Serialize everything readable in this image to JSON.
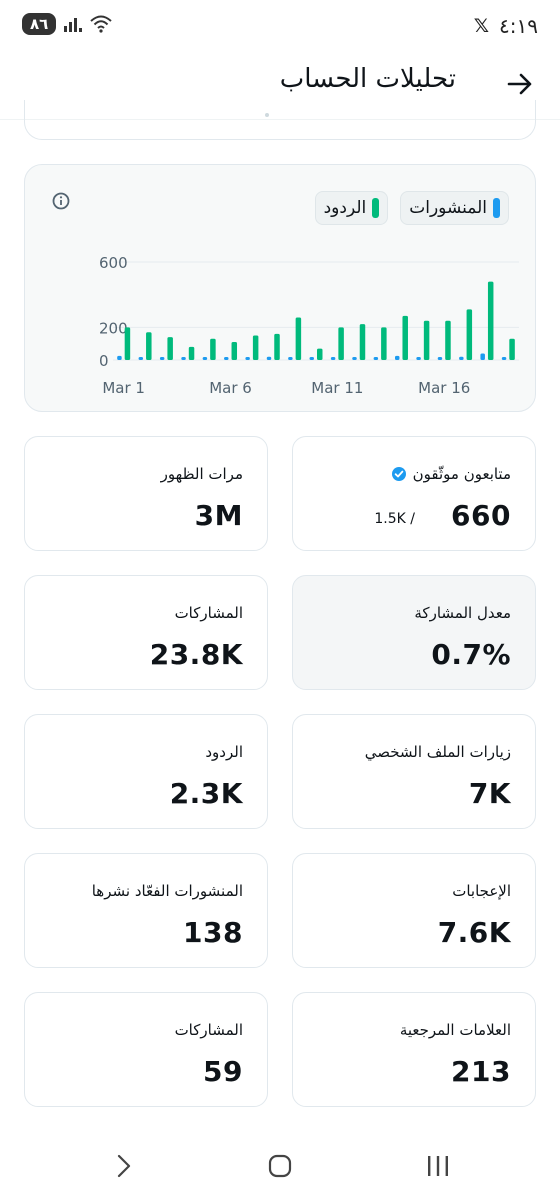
{
  "status_bar": {
    "time": "٤:١٩",
    "battery": "٨٦"
  },
  "header": {
    "title": "تحليلات الحساب"
  },
  "chart_data": {
    "type": "bar",
    "legend": [
      {
        "label": "المنشورات",
        "color": "#1d9bf0"
      },
      {
        "label": "الردود",
        "color": "#00ba7c"
      }
    ],
    "categories": [
      "Mar 1",
      "Mar 2",
      "Mar 3",
      "Mar 4",
      "Mar 5",
      "Mar 6",
      "Mar 7",
      "Mar 8",
      "Mar 9",
      "Mar 10",
      "Mar 11",
      "Mar 12",
      "Mar 13",
      "Mar 14",
      "Mar 15",
      "Mar 16",
      "Mar 17",
      "Mar 18",
      "Mar 19"
    ],
    "x_tick_labels": [
      "Mar 1",
      "Mar 6",
      "Mar 11",
      "Mar 16"
    ],
    "y_tick_labels": [
      "600",
      "200",
      "0"
    ],
    "ylim": [
      0,
      600
    ],
    "series": [
      {
        "name": "المنشورات",
        "color": "#1d9bf0",
        "values": [
          25,
          8,
          8,
          8,
          8,
          8,
          8,
          20,
          8,
          15,
          8,
          8,
          8,
          25,
          8,
          8,
          20,
          40,
          8
        ]
      },
      {
        "name": "الردود",
        "color": "#00ba7c",
        "values": [
          200,
          170,
          140,
          80,
          130,
          110,
          150,
          160,
          260,
          70,
          200,
          220,
          200,
          270,
          240,
          240,
          310,
          480,
          130
        ]
      }
    ]
  },
  "stats": [
    {
      "label": "متابعون موثّقون",
      "value": "660",
      "sub": "1.5K /",
      "verified": true,
      "shaded": false
    },
    {
      "label": "مرات الظهور",
      "value": "3M",
      "shaded": false
    },
    {
      "label": "معدل المشاركة",
      "value": "0.7%",
      "shaded": true
    },
    {
      "label": "المشاركات",
      "value": "23.8K",
      "shaded": false
    },
    {
      "label": "زيارات الملف الشخصي",
      "value": "7K",
      "shaded": false
    },
    {
      "label": "الردود",
      "value": "2.3K",
      "shaded": false
    },
    {
      "label": "الإعجابات",
      "value": "7.6K",
      "shaded": false
    },
    {
      "label": "المنشورات الفعّاد نشرها",
      "value": "138",
      "shaded": false
    },
    {
      "label": "العلامات المرجعية",
      "value": "213",
      "shaded": false
    },
    {
      "label": "المشاركات",
      "value": "59",
      "shaded": false
    }
  ]
}
